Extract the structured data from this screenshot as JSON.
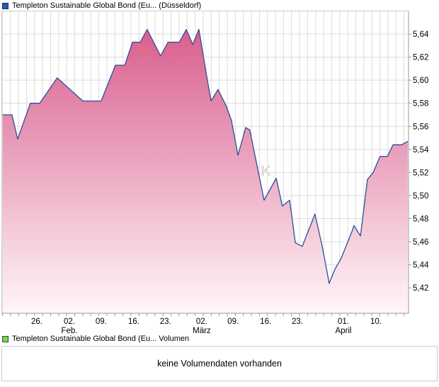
{
  "header": {
    "series_label": "Templeton Sustainable Global Bond (Eu... (Düsseldorf)",
    "marker_color": "#2457c5"
  },
  "volume_panel": {
    "series_label": "Templeton Sustainable Global Bond (Eu... Volumen",
    "marker_color": "#74d65c",
    "message": "keine Volumendaten vorhanden"
  },
  "chart_data": {
    "type": "area",
    "title": "",
    "xlabel": "",
    "ylabel": "",
    "watermark": "CK",
    "grid": true,
    "legend_position": "top-left-outside",
    "ylim": [
      5.398,
      5.66
    ],
    "y_ticks": [
      {
        "label": "5,64",
        "value": 5.64
      },
      {
        "label": "5,62",
        "value": 5.62
      },
      {
        "label": "5,60",
        "value": 5.6
      },
      {
        "label": "5,58",
        "value": 5.58
      },
      {
        "label": "5,56",
        "value": 5.56
      },
      {
        "label": "5,54",
        "value": 5.54
      },
      {
        "label": "5,52",
        "value": 5.52
      },
      {
        "label": "5,50",
        "value": 5.5
      },
      {
        "label": "5,48",
        "value": 5.48
      },
      {
        "label": "5,46",
        "value": 5.46
      },
      {
        "label": "5,44",
        "value": 5.44
      },
      {
        "label": "5,42",
        "value": 5.42
      }
    ],
    "x_ticks": [
      {
        "label": "26.",
        "sub": "",
        "pos": 0.087
      },
      {
        "label": "02.",
        "sub": "Feb.",
        "pos": 0.167
      },
      {
        "label": "09.",
        "sub": "",
        "pos": 0.245
      },
      {
        "label": "16.",
        "sub": "",
        "pos": 0.325
      },
      {
        "label": "23.",
        "sub": "",
        "pos": 0.403
      },
      {
        "label": "02.",
        "sub": "März",
        "pos": 0.492
      },
      {
        "label": "09.",
        "sub": "",
        "pos": 0.569
      },
      {
        "label": "16.",
        "sub": "",
        "pos": 0.649
      },
      {
        "label": "23.",
        "sub": "",
        "pos": 0.727
      },
      {
        "label": "01.",
        "sub": "April",
        "pos": 0.84
      },
      {
        "label": "10.",
        "sub": "",
        "pos": 0.92
      }
    ],
    "series": [
      {
        "name": "Templeton Sustainable Global Bond (Eu... (Düsseldorf)",
        "x_frac": [
          0.003,
          0.026,
          0.04,
          0.071,
          0.094,
          0.137,
          0.2,
          0.245,
          0.28,
          0.303,
          0.322,
          0.341,
          0.358,
          0.391,
          0.409,
          0.437,
          0.454,
          0.47,
          0.485,
          0.506,
          0.515,
          0.532,
          0.553,
          0.565,
          0.581,
          0.6,
          0.61,
          0.645,
          0.675,
          0.69,
          0.708,
          0.722,
          0.739,
          0.77,
          0.788,
          0.805,
          0.819,
          0.835,
          0.861,
          0.866,
          0.882,
          0.899,
          0.913,
          0.93,
          0.948,
          0.962,
          0.983,
          0.998
        ],
        "values": [
          5.57,
          5.57,
          5.549,
          5.58,
          5.58,
          5.602,
          5.582,
          5.582,
          5.613,
          5.613,
          5.633,
          5.633,
          5.644,
          5.621,
          5.633,
          5.633,
          5.644,
          5.631,
          5.644,
          5.6,
          5.582,
          5.592,
          5.577,
          5.565,
          5.535,
          5.559,
          5.557,
          5.496,
          5.515,
          5.491,
          5.496,
          5.459,
          5.456,
          5.484,
          5.456,
          5.424,
          5.436,
          5.446,
          5.469,
          5.474,
          5.465,
          5.514,
          5.52,
          5.534,
          5.534,
          5.544,
          5.544,
          5.547
        ]
      }
    ],
    "colors": {
      "line": "#2c4d96",
      "fill_top": "#d95f8d",
      "fill_bottom": "#fff6f9",
      "grid": "#dcdcdc",
      "border": "#cccccc",
      "axis": "#9a9a9a",
      "tick_text": "#000000",
      "watermark": "#e1dcd3"
    }
  }
}
